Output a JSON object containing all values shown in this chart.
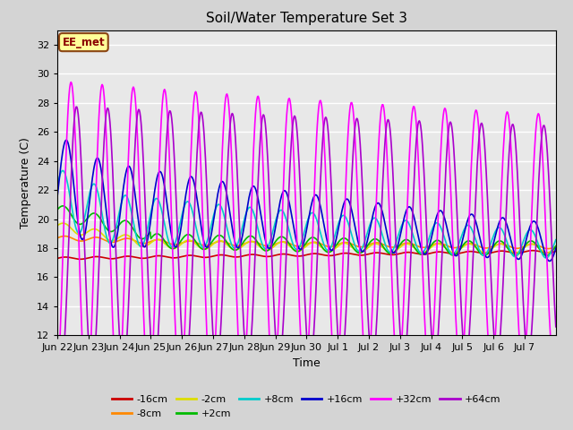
{
  "title": "Soil/Water Temperature Set 3",
  "xlabel": "Time",
  "ylabel": "Temperature (C)",
  "ylim": [
    12,
    33
  ],
  "yticks": [
    12,
    14,
    16,
    18,
    20,
    22,
    24,
    26,
    28,
    30,
    32
  ],
  "fig_bg_color": "#d4d4d4",
  "plot_bg_color": "#e8e8e8",
  "annotation_text": "EE_met",
  "annotation_box_color": "#ffff99",
  "annotation_border_color": "#8B4513",
  "series_colors": {
    "-16cm": "#cc0000",
    "-8cm": "#ff8800",
    "-2cm": "#dddd00",
    "+2cm": "#00bb00",
    "+8cm": "#00cccc",
    "+16cm": "#0000cc",
    "+32cm": "#ff00ff",
    "+64cm": "#aa00cc"
  },
  "x_tick_labels": [
    "Jun 22",
    "Jun 23",
    "Jun 24",
    "Jun 25",
    "Jun 26",
    "Jun 27",
    "Jun 28",
    "Jun 29",
    "Jun 30",
    "Jul 1",
    "Jul 2",
    "Jul 3",
    "Jul 4",
    "Jul 5",
    "Jul 6",
    "Jul 7"
  ],
  "n_days": 16
}
